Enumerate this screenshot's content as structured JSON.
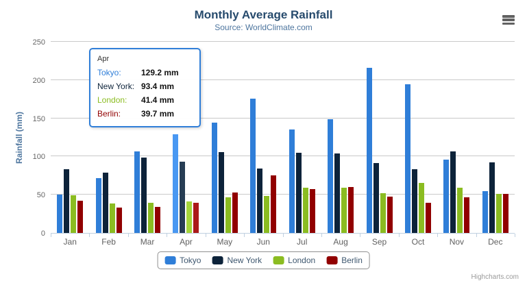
{
  "title": "Monthly Average Rainfall",
  "subtitle": "Source: WorldClimate.com",
  "credits": "Highcharts.com",
  "chart_data": {
    "type": "bar",
    "title": "Monthly Average Rainfall",
    "subtitle": "Source: WorldClimate.com",
    "xlabel": "",
    "ylabel": "Rainfall (mm)",
    "ylim": [
      0,
      250
    ],
    "yticks": [
      0,
      50,
      100,
      150,
      200,
      250
    ],
    "grid": true,
    "legend_position": "bottom",
    "categories": [
      "Jan",
      "Feb",
      "Mar",
      "Apr",
      "May",
      "Jun",
      "Jul",
      "Aug",
      "Sep",
      "Oct",
      "Nov",
      "Dec"
    ],
    "series": [
      {
        "name": "Tokyo",
        "color": "#2f7ed8",
        "hover_color": "#4998f2",
        "values": [
          49.9,
          71.5,
          106.4,
          129.2,
          144.0,
          176.0,
          135.6,
          148.5,
          216.4,
          194.1,
          95.6,
          54.4
        ]
      },
      {
        "name": "New York",
        "color": "#0d233a",
        "hover_color": "#273d54",
        "values": [
          83.6,
          78.8,
          98.5,
          93.4,
          106.0,
          84.5,
          105.0,
          104.3,
          91.2,
          83.5,
          106.6,
          92.3
        ]
      },
      {
        "name": "London",
        "color": "#8bbc21",
        "hover_color": "#a5d63b",
        "values": [
          48.9,
          38.8,
          39.3,
          41.4,
          47.0,
          48.3,
          59.0,
          59.6,
          52.4,
          65.2,
          59.3,
          51.2
        ]
      },
      {
        "name": "Berlin",
        "color": "#910000",
        "hover_color": "#ab1a1a",
        "values": [
          42.4,
          33.2,
          34.5,
          39.7,
          52.6,
          75.5,
          57.4,
          60.4,
          47.6,
          39.1,
          46.8,
          51.1
        ]
      }
    ],
    "hovered_category": "Apr"
  },
  "tooltip": {
    "header": "Apr",
    "border_color": "#2f7ed8",
    "rows": [
      {
        "label": "Tokyo:",
        "value": "129.2 mm",
        "color": "#2f7ed8"
      },
      {
        "label": "New York:",
        "value": "93.4 mm",
        "color": "#0d233a"
      },
      {
        "label": "London:",
        "value": "41.4 mm",
        "color": "#8bbc21"
      },
      {
        "label": "Berlin:",
        "value": "39.7 mm",
        "color": "#910000"
      }
    ]
  },
  "legend": {
    "items": [
      {
        "label": "Tokyo",
        "color": "#2f7ed8"
      },
      {
        "label": "New York",
        "color": "#0d233a"
      },
      {
        "label": "London",
        "color": "#8bbc21"
      },
      {
        "label": "Berlin",
        "color": "#910000"
      }
    ]
  }
}
